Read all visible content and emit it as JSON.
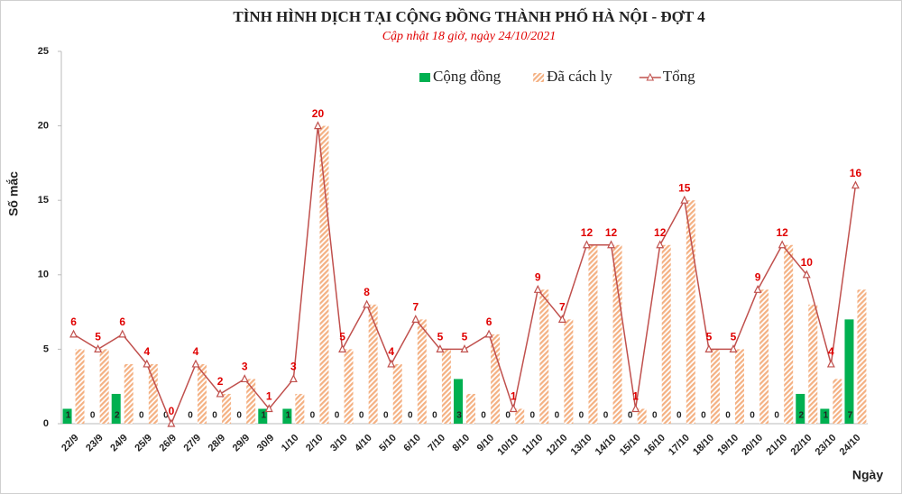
{
  "chart_data": {
    "type": "bar",
    "title": "TÌNH HÌNH DỊCH TẠI CỘNG ĐỒNG THÀNH PHỐ HÀ NỘI - ĐỢT 4",
    "subtitle": "Cập nhật 18 giờ, ngày 24/10/2021",
    "y_label": "Số mắc",
    "x_label": "Ngày",
    "categories": [
      "22/9",
      "23/9",
      "24/9",
      "25/9",
      "26/9",
      "27/9",
      "28/9",
      "29/9",
      "30/9",
      "1/10",
      "2/10",
      "3/10",
      "4/10",
      "5/10",
      "6/10",
      "7/10",
      "8/10",
      "9/10",
      "10/10",
      "11/10",
      "12/10",
      "13/10",
      "14/10",
      "15/10",
      "16/10",
      "17/10",
      "18/10",
      "19/10",
      "20/10",
      "21/10",
      "22/10",
      "23/10",
      "24/10"
    ],
    "series": [
      {
        "name": "Cộng đồng",
        "type": "bar",
        "color": "#00b050",
        "values": [
          1,
          0,
          2,
          0,
          0,
          0,
          0,
          0,
          1,
          1,
          0,
          0,
          0,
          0,
          0,
          0,
          3,
          0,
          0,
          0,
          0,
          0,
          0,
          0,
          0,
          0,
          0,
          0,
          0,
          0,
          2,
          1,
          7
        ]
      },
      {
        "name": "Đã cách ly",
        "type": "bar",
        "color": "#f4b183",
        "values": [
          5,
          5,
          4,
          4,
          0,
          4,
          2,
          3,
          0,
          2,
          20,
          5,
          8,
          4,
          7,
          5,
          2,
          6,
          1,
          9,
          7,
          12,
          12,
          1,
          12,
          15,
          5,
          5,
          9,
          12,
          8,
          3,
          9
        ]
      },
      {
        "name": "Tổng",
        "type": "line",
        "color": "#c0504d",
        "values": [
          6,
          5,
          6,
          4,
          0,
          4,
          2,
          3,
          1,
          3,
          20,
          5,
          8,
          4,
          7,
          5,
          5,
          6,
          1,
          9,
          7,
          12,
          12,
          1,
          12,
          15,
          5,
          5,
          9,
          12,
          10,
          4,
          16
        ]
      }
    ],
    "ylim": [
      0,
      25
    ],
    "yticks": [
      0,
      5,
      10,
      15,
      20,
      25
    ],
    "grid": false
  }
}
